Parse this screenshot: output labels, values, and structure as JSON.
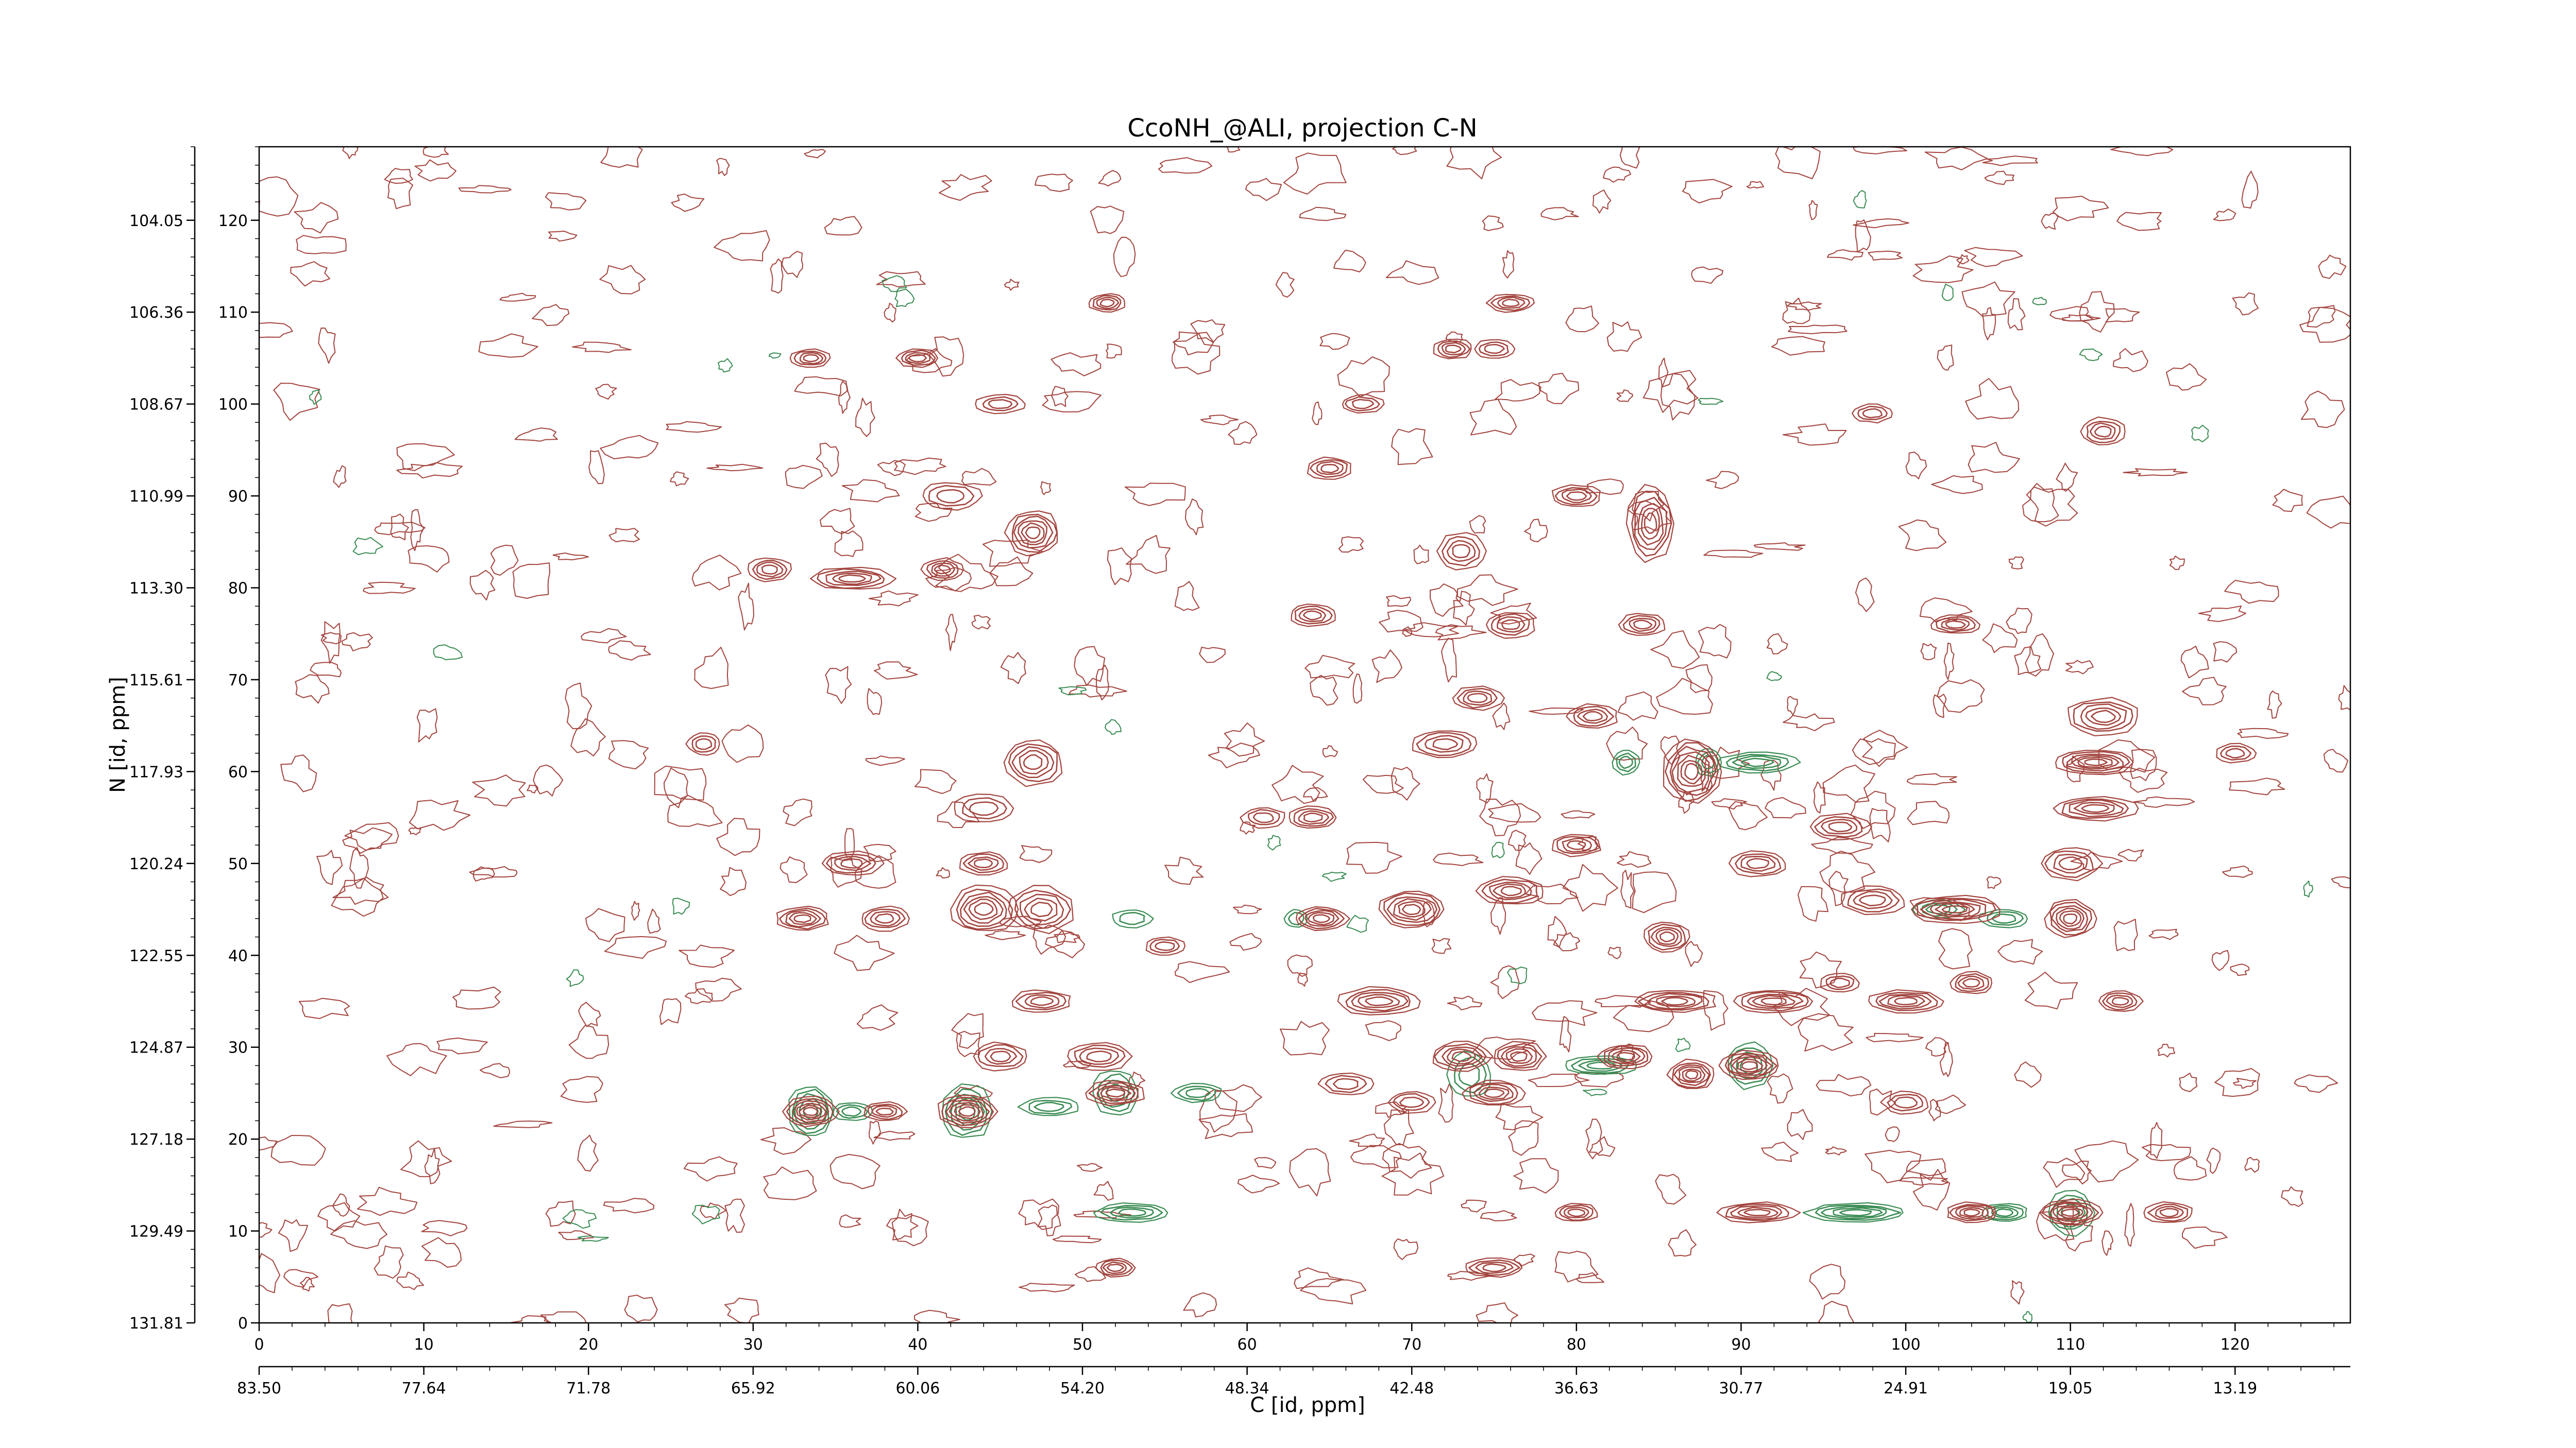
{
  "chart_data": {
    "type": "contour",
    "title": "CcoNH_@ALI, projection C-N",
    "xlabel": "C [id, ppm]",
    "ylabel": "N [id, ppm]",
    "x_index_ticks": [
      "0",
      "10",
      "20",
      "30",
      "40",
      "50",
      "60",
      "70",
      "80",
      "90",
      "100",
      "110",
      "120"
    ],
    "x_ppm_ticks": [
      "83.50",
      "77.64",
      "71.78",
      "65.92",
      "60.06",
      "54.20",
      "48.34",
      "42.48",
      "36.63",
      "30.77",
      "24.91",
      "19.05",
      "13.19"
    ],
    "y_index_ticks": [
      "0",
      "10",
      "20",
      "30",
      "40",
      "50",
      "60",
      "70",
      "80",
      "90",
      "100",
      "110",
      "120"
    ],
    "y_ppm_ticks": [
      "131.81",
      "129.49",
      "127.18",
      "124.87",
      "122.55",
      "120.24",
      "117.93",
      "115.61",
      "113.30",
      "110.99",
      "108.67",
      "106.36",
      "104.05"
    ],
    "x_index_range": [
      0,
      127
    ],
    "y_index_range": [
      0,
      128
    ],
    "colors": {
      "positive": "#a3453f",
      "negative": "#3b8c54",
      "axis": "#000000"
    },
    "peaks": [
      {
        "x": 33.5,
        "y": 23.0,
        "level": 6,
        "wx": 1.6,
        "wy": 1.6
      },
      {
        "x": 43.0,
        "y": 23.0,
        "level": 6,
        "wx": 1.8,
        "wy": 1.8
      },
      {
        "x": 52.0,
        "y": 25.0,
        "level": 5,
        "wx": 1.8,
        "wy": 1.3
      },
      {
        "x": 87.0,
        "y": 27.0,
        "level": 6,
        "wx": 1.4,
        "wy": 1.6
      },
      {
        "x": 90.5,
        "y": 28.0,
        "level": 6,
        "wx": 1.8,
        "wy": 1.6
      },
      {
        "x": 110.0,
        "y": 12.0,
        "level": 6,
        "wx": 1.9,
        "wy": 1.4
      },
      {
        "x": 87.0,
        "y": 60.0,
        "level": 7,
        "wx": 1.8,
        "wy": 3.5
      },
      {
        "x": 47.0,
        "y": 61.0,
        "level": 5,
        "wx": 1.8,
        "wy": 2.5
      },
      {
        "x": 44.0,
        "y": 45.0,
        "level": 6,
        "wx": 2.0,
        "wy": 2.5
      },
      {
        "x": 47.5,
        "y": 45.0,
        "level": 5,
        "wx": 2.0,
        "wy": 2.5
      },
      {
        "x": 33.0,
        "y": 44.0,
        "level": 5,
        "wx": 1.6,
        "wy": 1.3
      },
      {
        "x": 36.0,
        "y": 81.0,
        "level": 5,
        "wx": 2.5,
        "wy": 1.2
      },
      {
        "x": 31.0,
        "y": 82.0,
        "level": 4,
        "wx": 1.3,
        "wy": 1.3
      },
      {
        "x": 41.5,
        "y": 82.0,
        "level": 4,
        "wx": 1.2,
        "wy": 1.2
      },
      {
        "x": 47.0,
        "y": 86.0,
        "level": 6,
        "wx": 1.6,
        "wy": 2.4
      },
      {
        "x": 51.5,
        "y": 111.0,
        "level": 4,
        "wx": 1.1,
        "wy": 1.0
      },
      {
        "x": 33.5,
        "y": 105.0,
        "level": 4,
        "wx": 1.2,
        "wy": 1.0
      },
      {
        "x": 40.0,
        "y": 105.0,
        "level": 4,
        "wx": 1.3,
        "wy": 1.0
      },
      {
        "x": 65.0,
        "y": 93.0,
        "level": 4,
        "wx": 1.4,
        "wy": 1.2
      },
      {
        "x": 76.0,
        "y": 111.0,
        "level": 4,
        "wx": 1.4,
        "wy": 1.0
      },
      {
        "x": 84.5,
        "y": 87.0,
        "level": 6,
        "wx": 1.4,
        "wy": 4.0
      },
      {
        "x": 73.0,
        "y": 84.0,
        "level": 4,
        "wx": 1.4,
        "wy": 2.0
      },
      {
        "x": 64.5,
        "y": 44.0,
        "level": 5,
        "wx": 1.6,
        "wy": 1.3
      },
      {
        "x": 70.0,
        "y": 45.0,
        "level": 6,
        "wx": 2.0,
        "wy": 2.0
      },
      {
        "x": 76.0,
        "y": 47.0,
        "level": 5,
        "wx": 2.0,
        "wy": 1.5
      },
      {
        "x": 85.5,
        "y": 42.0,
        "level": 5,
        "wx": 1.4,
        "wy": 1.6
      },
      {
        "x": 68.0,
        "y": 35.0,
        "level": 5,
        "wx": 2.5,
        "wy": 1.5
      },
      {
        "x": 73.0,
        "y": 29.0,
        "level": 5,
        "wx": 1.8,
        "wy": 1.6
      },
      {
        "x": 76.5,
        "y": 29.0,
        "level": 5,
        "wx": 1.6,
        "wy": 1.6
      },
      {
        "x": 75.0,
        "y": 25.0,
        "level": 5,
        "wx": 1.8,
        "wy": 1.4
      },
      {
        "x": 83.0,
        "y": 29.0,
        "level": 5,
        "wx": 1.7,
        "wy": 1.3
      },
      {
        "x": 86.0,
        "y": 35.0,
        "level": 5,
        "wx": 2.5,
        "wy": 1.2
      },
      {
        "x": 92.0,
        "y": 35.0,
        "level": 5,
        "wx": 2.5,
        "wy": 1.2
      },
      {
        "x": 100.0,
        "y": 35.0,
        "level": 5,
        "wx": 2.3,
        "wy": 1.2
      },
      {
        "x": 103.0,
        "y": 45.0,
        "level": 6,
        "wx": 2.8,
        "wy": 1.5
      },
      {
        "x": 98.0,
        "y": 46.0,
        "level": 4,
        "wx": 2.0,
        "wy": 1.5
      },
      {
        "x": 110.0,
        "y": 44.0,
        "level": 6,
        "wx": 1.5,
        "wy": 2.0
      },
      {
        "x": 111.5,
        "y": 61.0,
        "level": 6,
        "wx": 2.5,
        "wy": 1.3
      },
      {
        "x": 111.5,
        "y": 56.0,
        "level": 5,
        "wx": 2.5,
        "wy": 1.3
      },
      {
        "x": 112.0,
        "y": 66.0,
        "level": 5,
        "wx": 2.2,
        "wy": 2.0
      },
      {
        "x": 110.0,
        "y": 50.0,
        "level": 4,
        "wx": 1.8,
        "wy": 1.8
      },
      {
        "x": 113.0,
        "y": 35.0,
        "level": 4,
        "wx": 1.3,
        "wy": 1.1
      },
      {
        "x": 104.0,
        "y": 37.0,
        "level": 4,
        "wx": 1.3,
        "wy": 1.2
      },
      {
        "x": 91.0,
        "y": 12.0,
        "level": 5,
        "wx": 2.4,
        "wy": 1.1
      },
      {
        "x": 104.0,
        "y": 12.0,
        "level": 5,
        "wx": 1.5,
        "wy": 1.1
      },
      {
        "x": 116.0,
        "y": 12.0,
        "level": 4,
        "wx": 1.5,
        "wy": 1.1
      },
      {
        "x": 80.0,
        "y": 12.0,
        "level": 4,
        "wx": 1.3,
        "wy": 1.0
      },
      {
        "x": 52.0,
        "y": 6.0,
        "level": 4,
        "wx": 1.2,
        "wy": 1.0
      },
      {
        "x": 75.0,
        "y": 6.0,
        "level": 4,
        "wx": 1.8,
        "wy": 1.0
      },
      {
        "x": 51.0,
        "y": 29.0,
        "level": 4,
        "wx": 2.0,
        "wy": 1.5
      },
      {
        "x": 45.0,
        "y": 29.0,
        "level": 4,
        "wx": 1.6,
        "wy": 1.5
      },
      {
        "x": 38.0,
        "y": 23.0,
        "level": 4,
        "wx": 1.3,
        "wy": 1.0
      },
      {
        "x": 36.0,
        "y": 50.0,
        "level": 4,
        "wx": 1.8,
        "wy": 1.3
      },
      {
        "x": 44.0,
        "y": 50.0,
        "level": 4,
        "wx": 1.5,
        "wy": 1.2
      },
      {
        "x": 38.0,
        "y": 44.0,
        "level": 4,
        "wx": 1.5,
        "wy": 1.3
      },
      {
        "x": 44.0,
        "y": 56.0,
        "level": 3,
        "wx": 1.8,
        "wy": 1.5
      },
      {
        "x": 47.5,
        "y": 35.0,
        "level": 4,
        "wx": 1.8,
        "wy": 1.2
      },
      {
        "x": 74.0,
        "y": 68.0,
        "level": 4,
        "wx": 1.5,
        "wy": 1.3
      },
      {
        "x": 81.0,
        "y": 66.0,
        "level": 4,
        "wx": 1.5,
        "wy": 1.3
      },
      {
        "x": 76.0,
        "y": 76.0,
        "level": 4,
        "wx": 1.5,
        "wy": 1.4
      },
      {
        "x": 64.0,
        "y": 55.0,
        "level": 4,
        "wx": 1.5,
        "wy": 1.2
      },
      {
        "x": 72.0,
        "y": 63.0,
        "level": 4,
        "wx": 2.0,
        "wy": 1.5
      },
      {
        "x": 80.0,
        "y": 52.0,
        "level": 4,
        "wx": 1.5,
        "wy": 1.2
      },
      {
        "x": 91.0,
        "y": 50.0,
        "level": 4,
        "wx": 1.8,
        "wy": 1.4
      },
      {
        "x": 96.0,
        "y": 54.0,
        "level": 4,
        "wx": 1.8,
        "wy": 1.4
      },
      {
        "x": 80.0,
        "y": 90.0,
        "level": 4,
        "wx": 1.5,
        "wy": 1.2
      },
      {
        "x": 64.0,
        "y": 77.0,
        "level": 4,
        "wx": 1.4,
        "wy": 1.2
      },
      {
        "x": 103.0,
        "y": 76.0,
        "level": 4,
        "wx": 1.5,
        "wy": 1.0
      },
      {
        "x": 84.0,
        "y": 76.0,
        "level": 4,
        "wx": 1.4,
        "wy": 1.2
      },
      {
        "x": 72.5,
        "y": 106.0,
        "level": 4,
        "wx": 1.2,
        "wy": 1.1
      },
      {
        "x": 75.0,
        "y": 106.0,
        "level": 3,
        "wx": 1.2,
        "wy": 1.0
      },
      {
        "x": 67.0,
        "y": 100.0,
        "level": 3,
        "wx": 1.3,
        "wy": 1.0
      },
      {
        "x": 112.0,
        "y": 97.0,
        "level": 4,
        "wx": 1.3,
        "wy": 1.5
      },
      {
        "x": 98.0,
        "y": 99.0,
        "level": 3,
        "wx": 1.2,
        "wy": 1.0
      },
      {
        "x": 45.0,
        "y": 100.0,
        "level": 3,
        "wx": 1.5,
        "wy": 1.0
      },
      {
        "x": 42.0,
        "y": 90.0,
        "level": 3,
        "wx": 1.8,
        "wy": 1.5
      },
      {
        "x": 27.0,
        "y": 63.0,
        "level": 3,
        "wx": 1.0,
        "wy": 1.2
      },
      {
        "x": 96.0,
        "y": 37.0,
        "level": 3,
        "wx": 1.2,
        "wy": 1.0
      },
      {
        "x": 100.0,
        "y": 24.0,
        "level": 3,
        "wx": 1.4,
        "wy": 1.2
      },
      {
        "x": 66.0,
        "y": 26.0,
        "level": 3,
        "wx": 1.6,
        "wy": 1.2
      },
      {
        "x": 70.0,
        "y": 24.0,
        "level": 3,
        "wx": 1.4,
        "wy": 1.2
      },
      {
        "x": 55.0,
        "y": 41.0,
        "level": 3,
        "wx": 1.2,
        "wy": 1.0
      },
      {
        "x": 61.0,
        "y": 55.0,
        "level": 3,
        "wx": 1.3,
        "wy": 1.1
      },
      {
        "x": 120.0,
        "y": 62.0,
        "level": 3,
        "wx": 1.2,
        "wy": 1.0
      }
    ],
    "negative_peaks": [
      {
        "x": 33.5,
        "y": 23.0,
        "level": 5,
        "wx": 1.4,
        "wy": 2.8
      },
      {
        "x": 43.0,
        "y": 23.0,
        "level": 5,
        "wx": 1.5,
        "wy": 3.0
      },
      {
        "x": 52.0,
        "y": 25.0,
        "level": 4,
        "wx": 1.4,
        "wy": 2.5
      },
      {
        "x": 36.0,
        "y": 23.0,
        "level": 3,
        "wx": 1.2,
        "wy": 1.0
      },
      {
        "x": 48.0,
        "y": 23.5,
        "level": 3,
        "wx": 1.8,
        "wy": 1.0
      },
      {
        "x": 57.0,
        "y": 25.0,
        "level": 3,
        "wx": 1.5,
        "wy": 1.0
      },
      {
        "x": 53.0,
        "y": 12.0,
        "level": 4,
        "wx": 2.2,
        "wy": 1.0
      },
      {
        "x": 81.5,
        "y": 28.0,
        "level": 4,
        "wx": 2.2,
        "wy": 1.0
      },
      {
        "x": 90.5,
        "y": 28.0,
        "level": 4,
        "wx": 1.4,
        "wy": 2.5
      },
      {
        "x": 73.5,
        "y": 27.0,
        "level": 3,
        "wx": 1.3,
        "wy": 2.5
      },
      {
        "x": 97.0,
        "y": 12.0,
        "level": 5,
        "wx": 3.0,
        "wy": 1.0
      },
      {
        "x": 106.0,
        "y": 12.0,
        "level": 4,
        "wx": 1.4,
        "wy": 1.0
      },
      {
        "x": 110.0,
        "y": 12.0,
        "level": 4,
        "wx": 1.4,
        "wy": 2.5
      },
      {
        "x": 91.0,
        "y": 61.0,
        "level": 4,
        "wx": 2.4,
        "wy": 1.1
      },
      {
        "x": 83.0,
        "y": 61.0,
        "level": 3,
        "wx": 0.8,
        "wy": 1.3
      },
      {
        "x": 88.0,
        "y": 61.0,
        "level": 3,
        "wx": 0.8,
        "wy": 1.5
      },
      {
        "x": 102.0,
        "y": 45.0,
        "level": 3,
        "wx": 1.5,
        "wy": 1.0
      },
      {
        "x": 106.0,
        "y": 44.0,
        "level": 3,
        "wx": 1.5,
        "wy": 1.0
      },
      {
        "x": 53.0,
        "y": 44.0,
        "level": 2,
        "wx": 1.2,
        "wy": 1.0
      },
      {
        "x": 63.0,
        "y": 44.0,
        "level": 2,
        "wx": 0.7,
        "wy": 1.0
      }
    ]
  }
}
